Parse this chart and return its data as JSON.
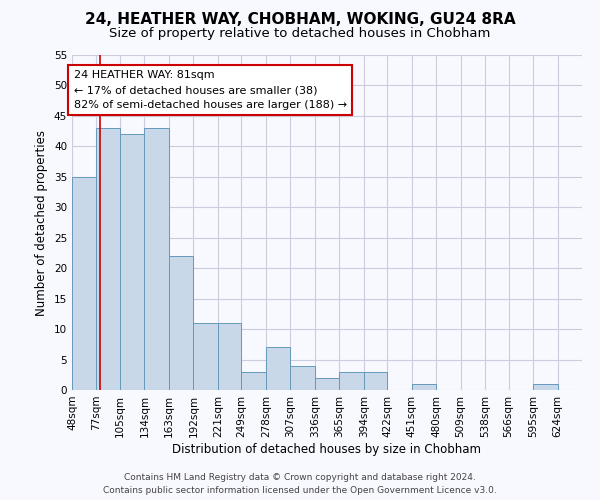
{
  "title": "24, HEATHER WAY, CHOBHAM, WOKING, GU24 8RA",
  "subtitle": "Size of property relative to detached houses in Chobham",
  "xlabel": "Distribution of detached houses by size in Chobham",
  "ylabel": "Number of detached properties",
  "bar_edges": [
    48,
    77,
    105,
    134,
    163,
    192,
    221,
    249,
    278,
    307,
    336,
    365,
    394,
    422,
    451,
    480,
    509,
    538,
    566,
    595,
    624
  ],
  "bar_heights": [
    35,
    43,
    42,
    43,
    22,
    11,
    11,
    3,
    7,
    4,
    2,
    3,
    3,
    0,
    1,
    0,
    0,
    0,
    0,
    1,
    0
  ],
  "bar_color": "#c8d8e8",
  "bar_edgecolor": "#6699bb",
  "grid_color": "#ccccdd",
  "property_line_x": 81,
  "property_line_color": "#cc0000",
  "annotation_text": "24 HEATHER WAY: 81sqm\n← 17% of detached houses are smaller (38)\n82% of semi-detached houses are larger (188) →",
  "annotation_box_color": "#ffffff",
  "annotation_box_edgecolor": "#cc0000",
  "ylim": [
    0,
    55
  ],
  "yticks": [
    0,
    5,
    10,
    15,
    20,
    25,
    30,
    35,
    40,
    45,
    50,
    55
  ],
  "footer_line1": "Contains HM Land Registry data © Crown copyright and database right 2024.",
  "footer_line2": "Contains public sector information licensed under the Open Government Licence v3.0.",
  "background_color": "#f8f8ff",
  "title_fontsize": 11,
  "subtitle_fontsize": 9.5,
  "axis_label_fontsize": 8.5,
  "tick_fontsize": 7.5,
  "annotation_fontsize": 8,
  "footer_fontsize": 6.5
}
